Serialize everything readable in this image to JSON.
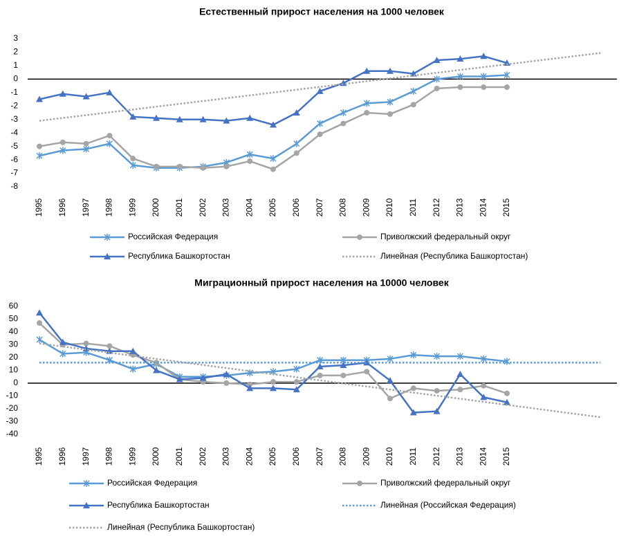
{
  "chart_data": [
    {
      "type": "line",
      "title": "Естественный прирост населения на 1000 человек",
      "categories": [
        "1995",
        "1996",
        "1997",
        "1998",
        "1999",
        "2000",
        "2001",
        "2002",
        "2003",
        "2004",
        "2005",
        "2006",
        "2007",
        "2008",
        "2009",
        "2010",
        "2011",
        "2012",
        "2013",
        "2014",
        "2015",
        null,
        null,
        null,
        null
      ],
      "ylim": [
        -8,
        3
      ],
      "yticks": [
        -8,
        -7,
        -6,
        -5,
        -4,
        -3,
        -2,
        -1,
        0,
        1,
        2,
        3
      ],
      "series": [
        {
          "name": "Российская Федерация",
          "color": "#5b9bd5",
          "marker": "x",
          "values": [
            -5.7,
            -5.3,
            -5.2,
            -4.8,
            -6.4,
            -6.6,
            -6.6,
            -6.5,
            -6.2,
            -5.6,
            -5.9,
            -4.8,
            -3.3,
            -2.5,
            -1.8,
            -1.7,
            -0.9,
            0.0,
            0.2,
            0.2,
            0.3,
            null,
            null,
            null,
            null
          ]
        },
        {
          "name": "Приволжский федеральный округ",
          "color": "#a5a5a5",
          "marker": "circle",
          "values": [
            -5.0,
            -4.7,
            -4.8,
            -4.2,
            -5.9,
            -6.5,
            -6.5,
            -6.6,
            -6.5,
            -6.1,
            -6.7,
            -5.5,
            -4.1,
            -3.3,
            -2.5,
            -2.6,
            -1.9,
            -0.7,
            -0.6,
            -0.6,
            -0.6,
            null,
            null,
            null,
            null
          ]
        },
        {
          "name": "Республика Башкортостан",
          "color": "#4472c4",
          "marker": "triangle",
          "values": [
            -1.5,
            -1.1,
            -1.3,
            -1.0,
            -2.8,
            -2.9,
            -3.0,
            -3.0,
            -3.1,
            -2.9,
            -3.4,
            -2.5,
            -0.9,
            -0.3,
            0.6,
            0.6,
            0.4,
            1.4,
            1.5,
            1.7,
            1.2,
            null,
            null,
            null,
            null
          ]
        },
        {
          "name": "Линейная (Республика Башкортостан)",
          "color": "#a5a5a5",
          "dotted": true,
          "values": [
            -3.1,
            -2.89,
            -2.68,
            -2.47,
            -2.26,
            -2.05,
            -1.84,
            -1.63,
            -1.42,
            -1.21,
            -1.0,
            -0.79,
            -0.58,
            -0.37,
            -0.16,
            0.05,
            0.26,
            0.47,
            0.68,
            0.89,
            1.1,
            1.31,
            1.52,
            1.73,
            1.94
          ]
        }
      ]
    },
    {
      "type": "line",
      "title": "Миграционный прирост населения на 10000 человек",
      "categories": [
        "1995",
        "1996",
        "1997",
        "1998",
        "1999",
        "2000",
        "2001",
        "2002",
        "2003",
        "2004",
        "2005",
        "2006",
        "2007",
        "2008",
        "2009",
        "2010",
        "2011",
        "2012",
        "2013",
        "2014",
        "2015",
        null,
        null,
        null,
        null
      ],
      "ylim": [
        -40,
        60
      ],
      "yticks": [
        -40,
        -30,
        -20,
        -10,
        0,
        10,
        20,
        30,
        40,
        50,
        60
      ],
      "series": [
        {
          "name": "Российская Федерация",
          "color": "#5b9bd5",
          "marker": "x",
          "values": [
            34,
            23,
            24,
            18,
            11,
            15,
            5,
            5,
            6,
            8,
            9,
            11,
            18,
            18,
            18,
            19,
            22,
            21,
            21,
            19,
            17,
            null,
            null,
            null,
            null
          ]
        },
        {
          "name": "Приволжский федеральный округ",
          "color": "#a5a5a5",
          "marker": "circle",
          "values": [
            47,
            30,
            31,
            29,
            22,
            16,
            3,
            1,
            0,
            -1,
            1,
            1,
            6,
            6,
            9,
            -12,
            -4,
            -6,
            -5,
            -2,
            -8,
            null,
            null,
            null,
            null
          ]
        },
        {
          "name": "Республика Башкортостан",
          "color": "#4472c4",
          "marker": "triangle",
          "values": [
            55,
            32,
            27,
            25,
            25,
            10,
            3,
            4,
            7,
            -4,
            -4,
            -5,
            13,
            14,
            16,
            2,
            -23,
            -22,
            7,
            -11,
            -15,
            null,
            null,
            null,
            null
          ]
        },
        {
          "name": "Линейная (Российская Федерация)",
          "color": "#5b9bd5",
          "dotted": true,
          "values": [
            16,
            16,
            16,
            16,
            16,
            16,
            16,
            16,
            16,
            16,
            16,
            16,
            16,
            16,
            16,
            16,
            16,
            16,
            16,
            16,
            16,
            16,
            16,
            16,
            16
          ]
        },
        {
          "name": "Линейная (Республика Башкортостан)",
          "color": "#a5a5a5",
          "dotted": true,
          "values": [
            31,
            28.6,
            26.2,
            23.8,
            21.4,
            19,
            16.6,
            14.2,
            11.8,
            9.4,
            7,
            4.6,
            2.2,
            -0.2,
            -2.6,
            -5,
            -7.4,
            -9.8,
            -12.2,
            -14.6,
            -17,
            -19.4,
            -21.8,
            -24.2,
            -26.6
          ]
        }
      ]
    }
  ]
}
